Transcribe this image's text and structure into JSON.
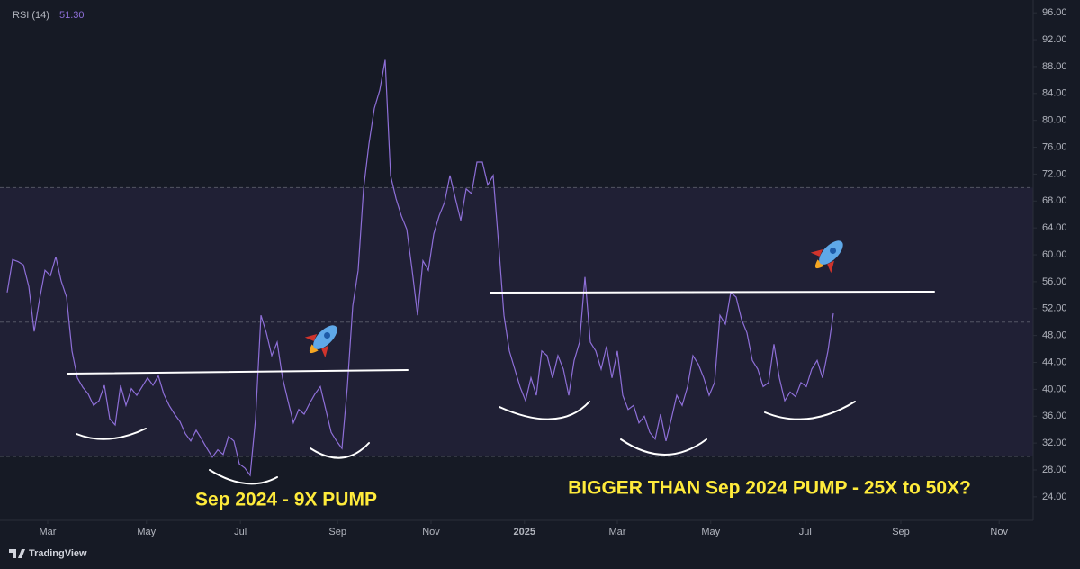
{
  "chart_data": {
    "type": "line",
    "annotations": [
      "Sep 2024 - 9X PUMP",
      "BIGGER THAN Sep 2024 PUMP - 25X to 50X?"
    ],
    "legend_value": "51.30",
    "x": [
      0,
      1,
      2,
      3,
      4,
      5,
      6,
      7,
      8,
      9,
      10,
      11,
      12,
      13,
      14,
      15,
      16,
      17,
      18,
      19,
      20,
      21,
      22,
      23,
      24,
      25,
      26,
      27,
      28,
      29,
      30,
      31,
      32,
      33,
      34,
      35,
      36,
      37,
      38,
      39,
      40,
      41,
      42,
      43,
      44,
      45,
      46,
      47,
      48,
      49,
      50,
      51,
      52,
      53,
      54,
      55,
      56,
      57,
      58,
      59,
      60,
      61,
      62,
      63,
      64,
      65,
      66,
      67,
      68,
      69,
      70,
      71,
      72,
      73,
      74,
      75,
      76,
      77,
      78,
      79,
      80,
      81,
      82,
      83,
      84,
      85,
      86,
      87,
      88,
      89,
      90,
      91,
      92,
      93,
      94,
      95,
      96,
      97,
      98,
      99,
      100,
      101,
      102,
      103,
      104,
      105,
      106,
      107,
      108,
      109,
      110,
      111,
      112,
      113,
      114,
      115,
      116,
      117,
      118,
      119,
      120,
      121,
      122,
      123,
      124,
      125,
      126,
      127,
      128,
      129,
      130,
      131,
      132,
      133,
      134,
      135,
      136,
      137,
      138,
      139,
      140,
      141,
      142,
      143,
      144,
      145,
      146,
      147,
      148,
      149,
      150,
      151,
      152,
      153
    ],
    "series": [
      {
        "name": "RSI (14)",
        "color": "#8e6fd8",
        "values": [
          54.4,
          59.3,
          59,
          58.5,
          55.3,
          48.6,
          53.4,
          57.7,
          56.9,
          59.7,
          56.1,
          53.7,
          45.7,
          41.7,
          40.3,
          39.3,
          37.6,
          38.3,
          40.6,
          35.6,
          34.7,
          40.6,
          37.6,
          40.1,
          39.1,
          40.4,
          41.7,
          40.6,
          42.0,
          39.3,
          37.6,
          36.3,
          35.2,
          33.4,
          32.3,
          33.9,
          32.6,
          31.2,
          29.9,
          31.0,
          30.3,
          33.0,
          32.3,
          28.9,
          28.3,
          27.2,
          35.6,
          51.0,
          48.4,
          45.0,
          47.0,
          41.7,
          38.3,
          35.0,
          37.0,
          36.3,
          37.9,
          39.3,
          40.4,
          37.0,
          33.6,
          32.3,
          31.2,
          40.4,
          52.4,
          57.7,
          69.8,
          76.5,
          81.8,
          84.5,
          89.0,
          71.8,
          68.4,
          65.8,
          63.8,
          57.7,
          51.0,
          59.1,
          57.7,
          63.1,
          65.8,
          67.8,
          71.8,
          68.4,
          65.1,
          69.8,
          69.1,
          73.8,
          73.8,
          70.4,
          71.8,
          61.7,
          51.0,
          45.7,
          43.0,
          40.3,
          38.3,
          41.7,
          39.1,
          45.7,
          45.0,
          41.7,
          45.0,
          43.0,
          39.1,
          44.3,
          47.0,
          56.7,
          47.0,
          45.7,
          43.0,
          46.4,
          41.7,
          45.7,
          39.1,
          37.0,
          37.6,
          35.0,
          36.0,
          33.6,
          32.6,
          36.3,
          32.3,
          35.6,
          39.1,
          37.6,
          40.4,
          45.0,
          43.7,
          41.7,
          39.1,
          41.0,
          51.0,
          49.7,
          54.4,
          53.7,
          50.4,
          48.4,
          44.3,
          43.0,
          40.4,
          41.0,
          46.7,
          41.7,
          38.3,
          39.6,
          38.9,
          41.0,
          40.4,
          43.0,
          44.3,
          41.7,
          45.7,
          51.3
        ]
      }
    ],
    "bands": {
      "upper": 70,
      "middle": 50,
      "lower": 30,
      "color": "#7e57c2"
    },
    "xlim": [
      -1.33,
      190
    ],
    "xticks": [
      {
        "value": 7.5,
        "label": "Mar"
      },
      {
        "value": 25.8,
        "label": "May"
      },
      {
        "value": 43.2,
        "label": "Jul"
      },
      {
        "value": 61.2,
        "label": "Sep"
      },
      {
        "value": 78.5,
        "label": "Nov"
      },
      {
        "value": 95.8,
        "label": "2025"
      },
      {
        "value": 113,
        "label": "Mar"
      },
      {
        "value": 130.3,
        "label": "May"
      },
      {
        "value": 147.8,
        "label": "Jul"
      },
      {
        "value": 165.5,
        "label": "Sep"
      },
      {
        "value": 183.7,
        "label": "Nov"
      }
    ],
    "ylim": [
      20.5,
      97.9
    ],
    "yticks": [
      {
        "value": 24,
        "label": "24.00"
      },
      {
        "value": 28,
        "label": "28.00"
      },
      {
        "value": 32,
        "label": "32.00"
      },
      {
        "value": 36,
        "label": "36.00"
      },
      {
        "value": 40,
        "label": "40.00"
      },
      {
        "value": 44,
        "label": "44.00"
      },
      {
        "value": 48,
        "label": "48.00"
      },
      {
        "value": 52,
        "label": "52.00"
      },
      {
        "value": 56,
        "label": "56.00"
      },
      {
        "value": 60,
        "label": "60.00"
      },
      {
        "value": 64,
        "label": "64.00"
      },
      {
        "value": 68,
        "label": "68.00"
      },
      {
        "value": 72,
        "label": "72.00"
      },
      {
        "value": 76,
        "label": "76.00"
      },
      {
        "value": 80,
        "label": "80.00"
      },
      {
        "value": 84,
        "label": "84.00"
      },
      {
        "value": 88,
        "label": "88.00"
      },
      {
        "value": 92,
        "label": "92.00"
      },
      {
        "value": 96,
        "label": "96.00"
      }
    ]
  },
  "footer": "TradingView"
}
